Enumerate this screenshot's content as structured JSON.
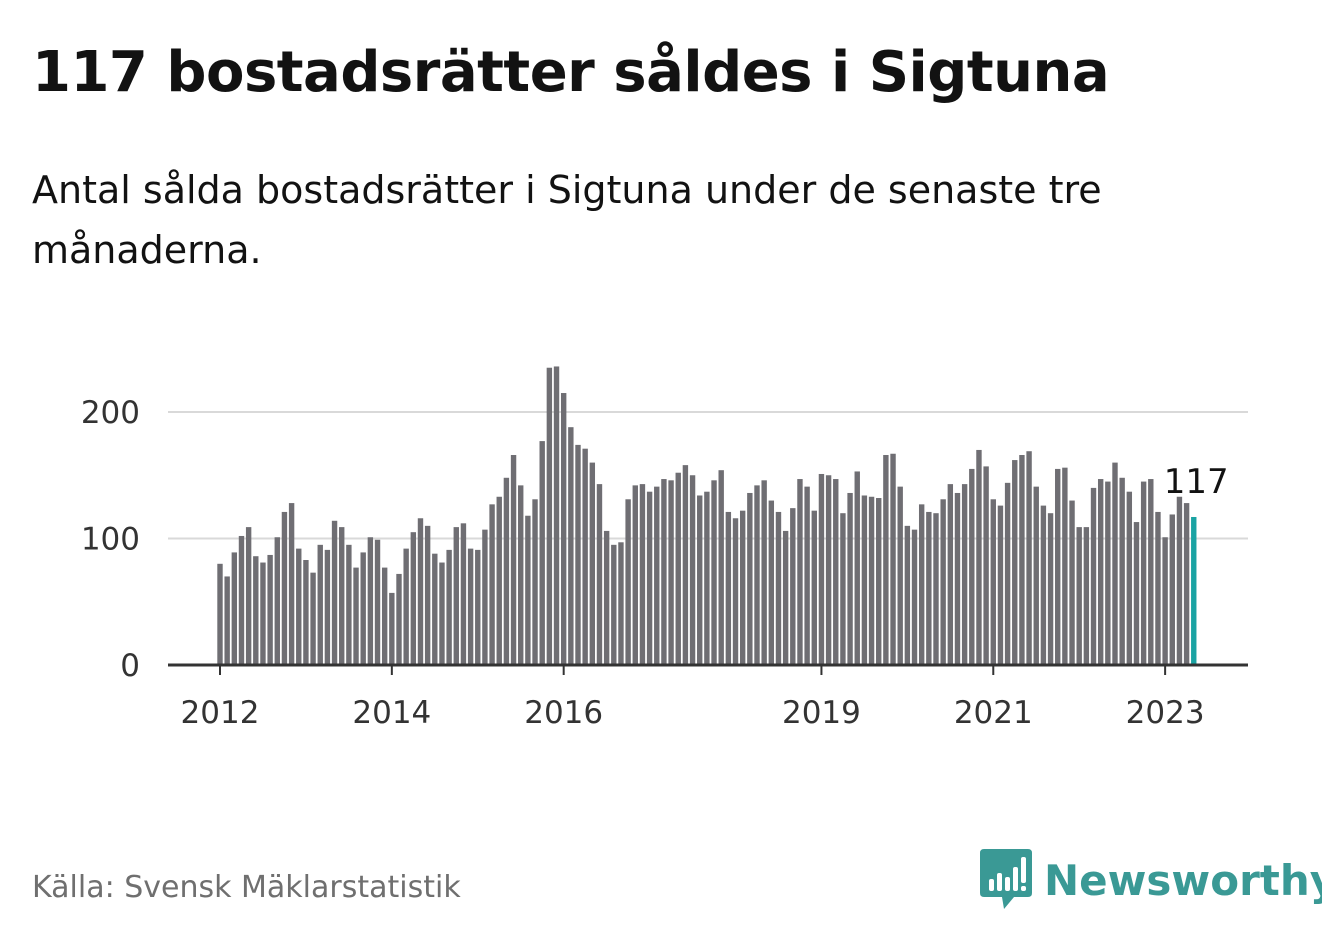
{
  "title": "117 bostadsrätter såldes i Sigtuna",
  "subtitle": "Antal sålda bostadsrätter i Sigtuna under de senaste tre månaderna.",
  "source": "Källa: Svensk Mäklarstatistik",
  "brand": {
    "name": "Newsworthy",
    "logo_icon": "bar-chart-badge-icon",
    "color": "#3a9995"
  },
  "colors": {
    "bar": "#6f6e73",
    "highlight": "#1aa3a3",
    "grid": "#d9d9d9",
    "axis": "#333333"
  },
  "chart_data": {
    "type": "bar",
    "title": "117 bostadsrätter såldes i Sigtuna",
    "xlabel": "",
    "ylabel": "",
    "ylim": [
      0,
      240
    ],
    "yticks": [
      "0",
      "100",
      "200"
    ],
    "xticks": [
      {
        "index": 0,
        "label": "2012"
      },
      {
        "index": 24,
        "label": "2014"
      },
      {
        "index": 48,
        "label": "2016"
      },
      {
        "index": 84,
        "label": "2019"
      },
      {
        "index": 108,
        "label": "2021"
      },
      {
        "index": 132,
        "label": "2023"
      }
    ],
    "annotation": {
      "text": "117",
      "index": 136
    },
    "highlight_index": 136,
    "grid": true,
    "values": [
      80,
      70,
      89,
      102,
      109,
      86,
      81,
      87,
      101,
      121,
      128,
      92,
      83,
      73,
      95,
      91,
      114,
      109,
      95,
      77,
      89,
      101,
      99,
      77,
      57,
      72,
      92,
      105,
      116,
      110,
      88,
      81,
      91,
      109,
      112,
      92,
      91,
      107,
      127,
      133,
      148,
      166,
      142,
      118,
      131,
      177,
      235,
      236,
      215,
      188,
      174,
      171,
      160,
      143,
      106,
      95,
      97,
      131,
      142,
      143,
      137,
      141,
      147,
      146,
      152,
      158,
      150,
      134,
      137,
      146,
      154,
      121,
      116,
      122,
      136,
      142,
      146,
      130,
      121,
      106,
      124,
      147,
      141,
      122,
      151,
      150,
      147,
      120,
      136,
      153,
      134,
      133,
      132,
      166,
      167,
      141,
      110,
      107,
      127,
      121,
      120,
      131,
      143,
      136,
      143,
      155,
      170,
      157,
      131,
      126,
      144,
      162,
      166,
      169,
      141,
      126,
      120,
      155,
      156,
      130,
      109,
      109,
      140,
      147,
      145,
      160,
      148,
      137,
      113,
      145,
      147,
      121,
      101,
      119,
      133,
      128,
      117
    ]
  }
}
